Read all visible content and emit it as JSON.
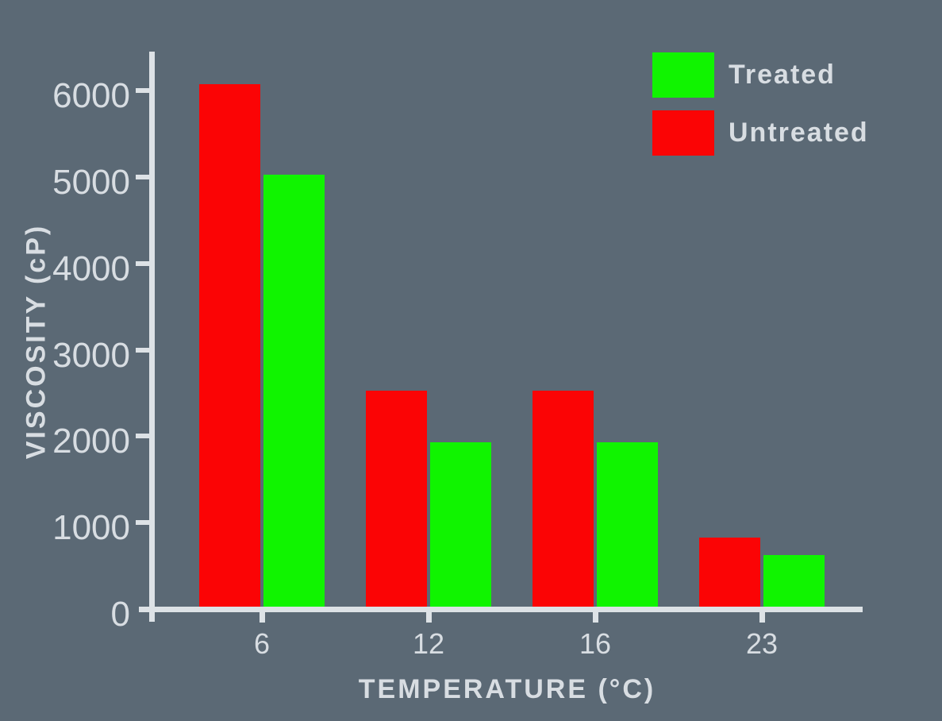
{
  "chart_data": {
    "type": "bar",
    "title": "",
    "xlabel": "TEMPERATURE (°C)",
    "ylabel": "VISCOSITY (cP)",
    "categories": [
      "6",
      "12",
      "16",
      "23"
    ],
    "series": [
      {
        "name": "Untreated",
        "color": "#fb0405",
        "values": [
          6050,
          2500,
          2500,
          800
        ]
      },
      {
        "name": "Treated",
        "color": "#10f400",
        "values": [
          5000,
          1900,
          1900,
          600
        ]
      }
    ],
    "ylim": [
      0,
      6430
    ],
    "yticks": [
      0,
      1000,
      2000,
      3000,
      4000,
      5000,
      6000
    ],
    "legend_position": "top-right",
    "legend_order": [
      "Treated",
      "Untreated"
    ],
    "grid": false
  },
  "colors": {
    "background": "#5b6975",
    "axis": "#dde2e6",
    "text": "#d8dde2",
    "treated": "#10f400",
    "untreated": "#fb0405"
  }
}
